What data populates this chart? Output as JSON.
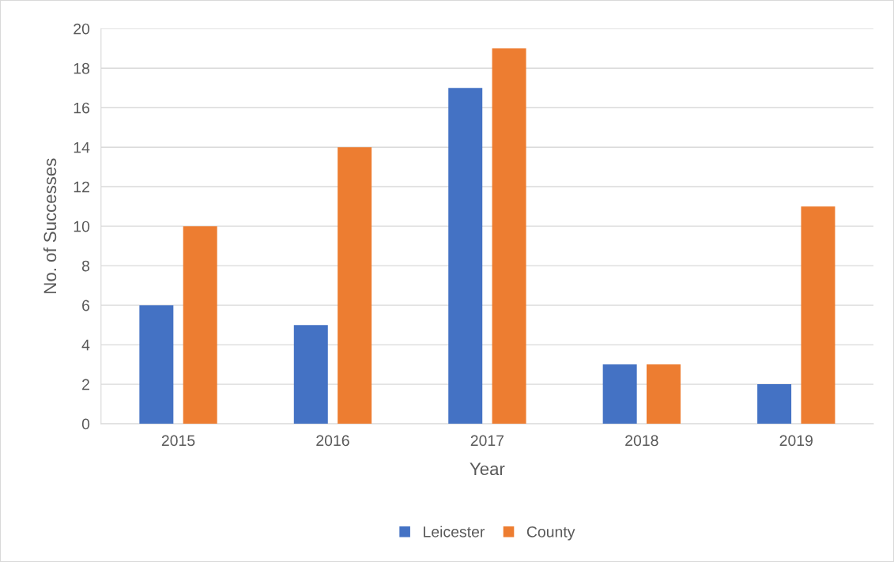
{
  "chart_data": {
    "type": "bar",
    "xlabel": "Year",
    "ylabel": "No. of Successes",
    "categories": [
      "2015",
      "2016",
      "2017",
      "2018",
      "2019"
    ],
    "series": [
      {
        "name": "Leicester",
        "color": "#4472c4",
        "values": [
          6,
          5,
          17,
          3,
          2
        ]
      },
      {
        "name": "County",
        "color": "#ed7d31",
        "values": [
          10,
          14,
          19,
          3,
          11
        ]
      }
    ],
    "ylim": [
      0,
      20
    ],
    "yticks": [
      0,
      2,
      4,
      6,
      8,
      10,
      12,
      14,
      16,
      18,
      20
    ],
    "grid": "y",
    "legend": "bottom"
  }
}
